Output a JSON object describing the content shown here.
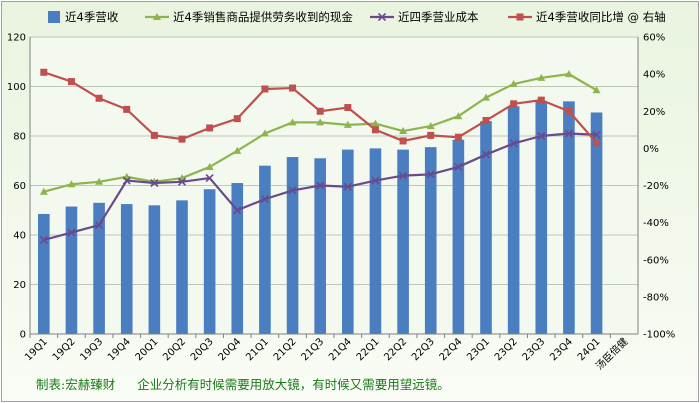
{
  "chart_data": {
    "type": "bar",
    "categories": [
      "19Q1",
      "19Q2",
      "19Q3",
      "19Q4",
      "20Q1",
      "20Q2",
      "20Q3",
      "20Q4",
      "21Q1",
      "21Q2",
      "21Q3",
      "21Q4",
      "22Q1",
      "22Q2",
      "22Q3",
      "22Q4",
      "23Q1",
      "23Q2",
      "23Q3",
      "23Q4",
      "24Q1"
    ],
    "extra_category_label": "汤臣倍健",
    "ylim_left": [
      0,
      120
    ],
    "yticks_left": [
      "0",
      "20",
      "40",
      "60",
      "80",
      "100",
      "120"
    ],
    "ylim_right": [
      -100,
      60
    ],
    "yticks_right": [
      "-100%",
      "-80%",
      "-60%",
      "-40%",
      "-20%",
      "0%",
      "20%",
      "40%",
      "60%"
    ],
    "grid": true,
    "legend_position": "top",
    "series": [
      {
        "name": "近4季营收",
        "kind": "bar",
        "axis": "left",
        "color": "#4a7ec0",
        "values": [
          48.5,
          51.5,
          53,
          52.5,
          52,
          54,
          58.5,
          61,
          68,
          71.5,
          71,
          74.5,
          75,
          74.5,
          75.5,
          78.5,
          86,
          92,
          94,
          94,
          89.5
        ]
      },
      {
        "name": "近4季销售商品提供劳务收到的现金",
        "kind": "line",
        "axis": "left",
        "color": "#8db44e",
        "marker": "triangle",
        "values": [
          57.5,
          60.5,
          61.5,
          63.5,
          61.5,
          63,
          67.5,
          74,
          81,
          85.5,
          85.5,
          84.5,
          85,
          82,
          84,
          88,
          95.5,
          101,
          103.5,
          105,
          98.5
        ]
      },
      {
        "name": "近四季营业成本",
        "kind": "line",
        "axis": "left",
        "color": "#6a4a8e",
        "marker": "x",
        "values": [
          38,
          41,
          44,
          62,
          61,
          61.5,
          63,
          50,
          54.5,
          58,
          60,
          59.5,
          62,
          64,
          64.5,
          67.5,
          72.5,
          77,
          80,
          81,
          80.5
        ]
      },
      {
        "name": "近4季营收同比增 @ 右轴",
        "kind": "line",
        "axis": "right",
        "color": "#c0504d",
        "marker": "square",
        "values": [
          41,
          36,
          27,
          21,
          7,
          5,
          11,
          16,
          32,
          32.5,
          20,
          22,
          10,
          4,
          7,
          6,
          15,
          24,
          26,
          20,
          3
        ]
      }
    ]
  },
  "footer": {
    "credit": "制表:宏赫臻财",
    "slogan": "企业分析有时候需要用放大镜，有时候又需要用望远镜。"
  }
}
